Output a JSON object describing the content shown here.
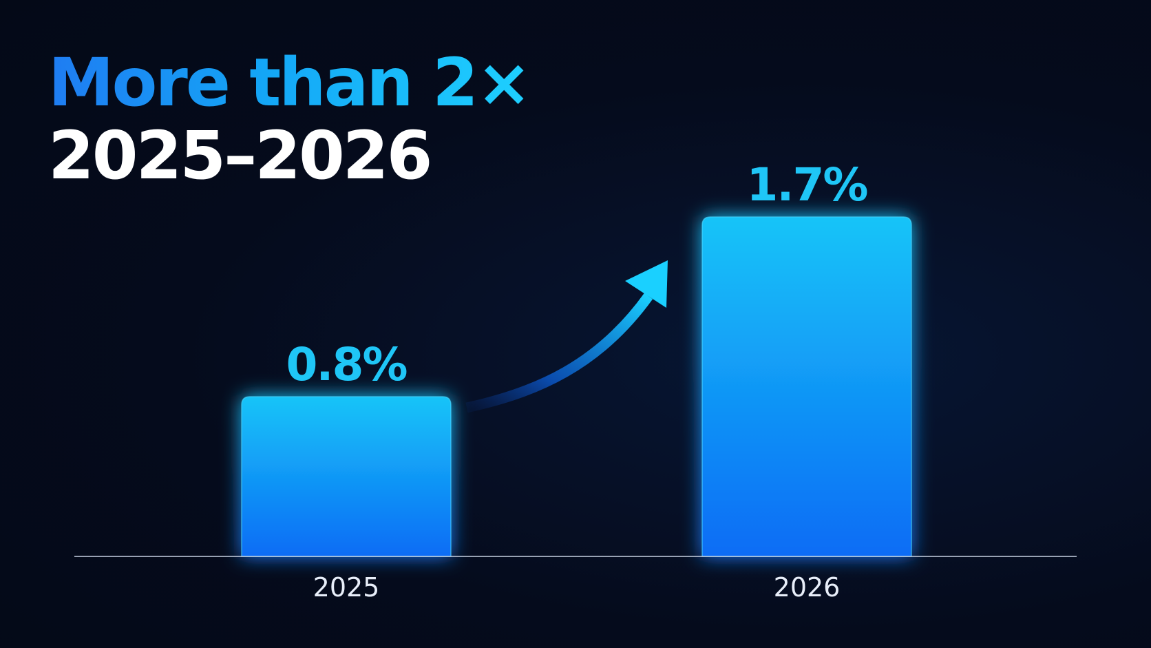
{
  "headline": {
    "line1": "More than 2×",
    "line2": "2025–2026"
  },
  "chart_data": {
    "type": "bar",
    "categories": [
      "2025",
      "2026"
    ],
    "values": [
      0.8,
      1.7
    ],
    "value_labels": [
      "0.8%",
      "1.7%"
    ],
    "ylim": [
      0,
      2.2
    ],
    "grid": false,
    "legend": "none",
    "annotation": "curved arrow from 2025 bar to 2026 bar",
    "colors": {
      "bar_top": "#18c4f8",
      "bar_bottom": "#0a6cf5",
      "value_label": "#1fc6f7",
      "background": "#050b1c",
      "baseline": "#c9d3e4"
    }
  }
}
